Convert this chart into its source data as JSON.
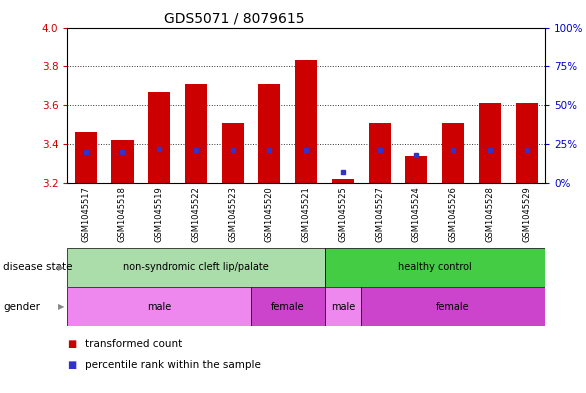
{
  "title": "GDS5071 / 8079615",
  "samples": [
    "GSM1045517",
    "GSM1045518",
    "GSM1045519",
    "GSM1045522",
    "GSM1045523",
    "GSM1045520",
    "GSM1045521",
    "GSM1045525",
    "GSM1045527",
    "GSM1045524",
    "GSM1045526",
    "GSM1045528",
    "GSM1045529"
  ],
  "bar_tops": [
    3.46,
    3.42,
    3.67,
    3.71,
    3.51,
    3.71,
    3.83,
    3.22,
    3.51,
    3.34,
    3.51,
    3.61,
    3.61
  ],
  "bar_bottoms": [
    3.2,
    3.2,
    3.2,
    3.2,
    3.2,
    3.2,
    3.2,
    3.2,
    3.2,
    3.2,
    3.2,
    3.2,
    3.2
  ],
  "dot_percentiles": [
    20,
    20,
    22,
    21,
    21,
    21,
    21,
    7,
    21,
    18,
    21,
    21,
    21
  ],
  "ylim_left": [
    3.2,
    4.0
  ],
  "ylim_right": [
    0,
    100
  ],
  "yticks_left": [
    3.2,
    3.4,
    3.6,
    3.8,
    4.0
  ],
  "yticks_right": [
    0,
    25,
    50,
    75,
    100
  ],
  "ytick_labels_right": [
    "0%",
    "25%",
    "50%",
    "75%",
    "100%"
  ],
  "bar_color": "#cc0000",
  "dot_color": "#3333cc",
  "grid_color": "#000000",
  "sample_bg_color": "#cccccc",
  "disease_state_groups": [
    {
      "label": "non-syndromic cleft lip/palate",
      "start": 0,
      "end": 7,
      "color": "#aaddaa"
    },
    {
      "label": "healthy control",
      "start": 7,
      "end": 13,
      "color": "#44cc44"
    }
  ],
  "gender_groups": [
    {
      "label": "male",
      "start": 0,
      "end": 5,
      "color": "#ee88ee"
    },
    {
      "label": "female",
      "start": 5,
      "end": 7,
      "color": "#cc44cc"
    },
    {
      "label": "male",
      "start": 7,
      "end": 8,
      "color": "#ee88ee"
    },
    {
      "label": "female",
      "start": 8,
      "end": 13,
      "color": "#cc44cc"
    }
  ],
  "legend_items": [
    {
      "label": "transformed count",
      "color": "#cc0000"
    },
    {
      "label": "percentile rank within the sample",
      "color": "#3333cc"
    }
  ],
  "background_color": "#ffffff",
  "title_fontsize": 10,
  "tick_fontsize": 7.5,
  "label_fontsize": 8
}
